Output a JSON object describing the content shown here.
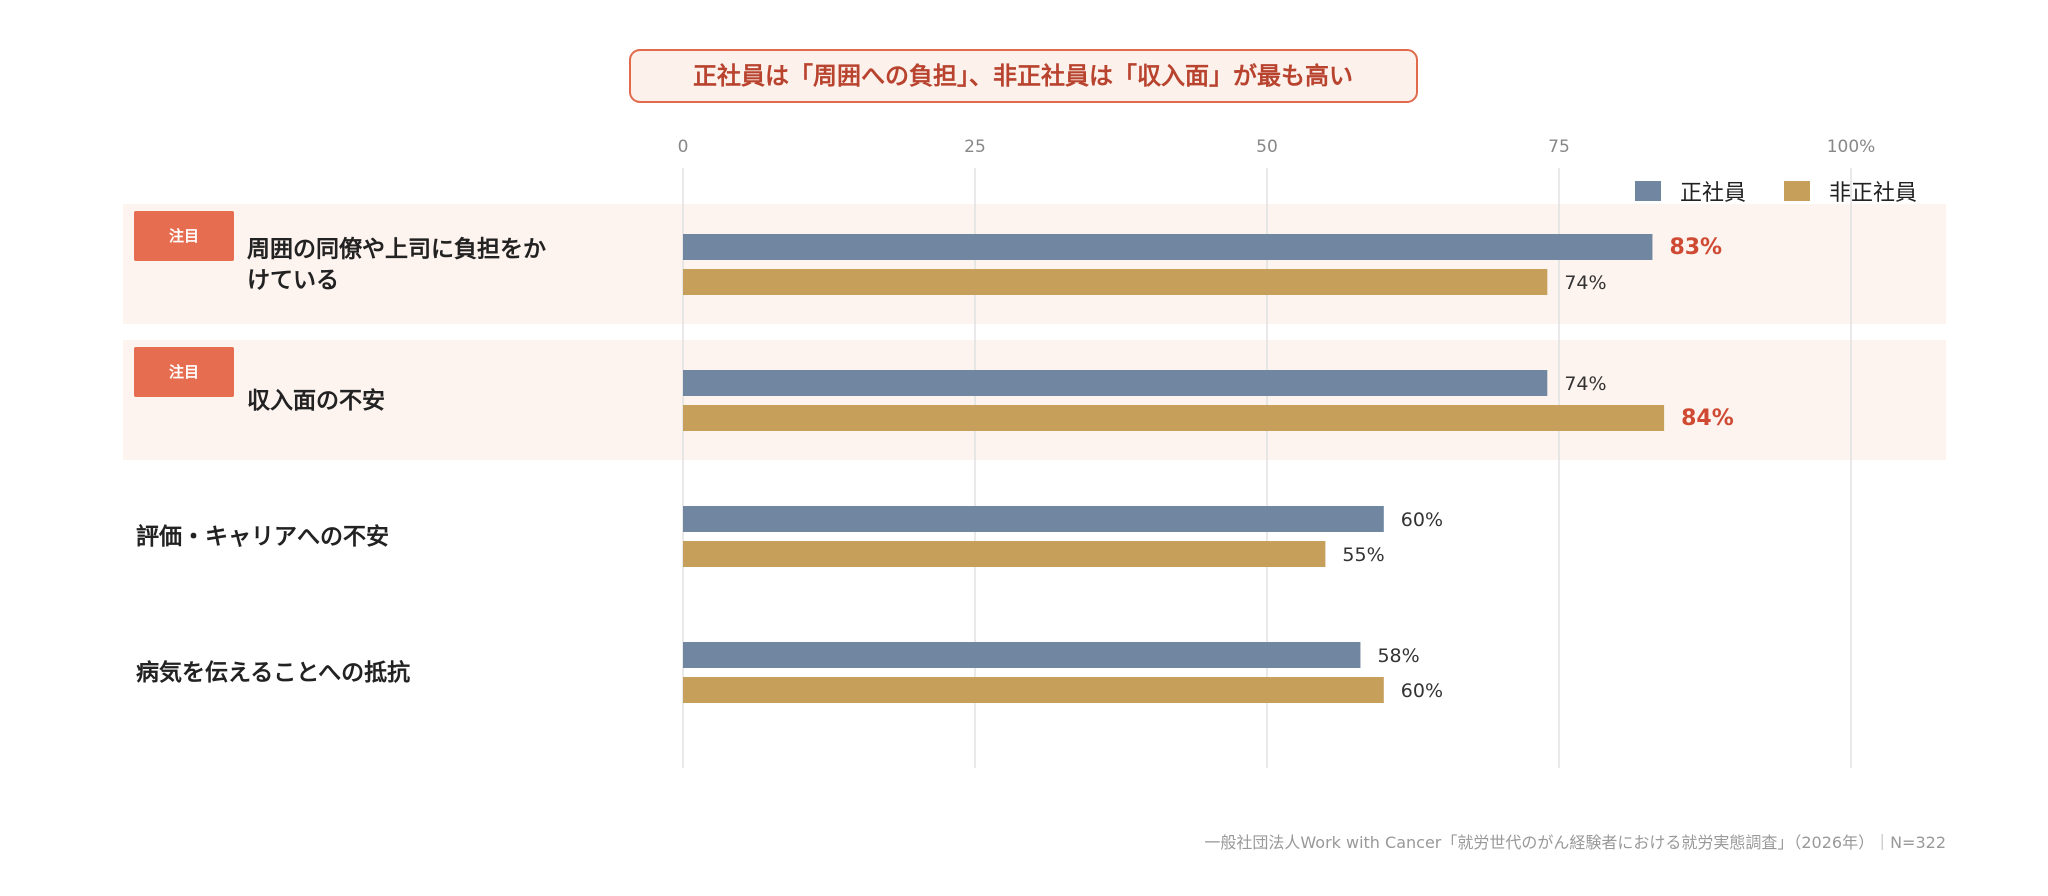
{
  "chart_data": {
    "type": "bar",
    "orientation": "horizontal",
    "title": "正社員は「周囲への負担」、非正社員は「収入面」が最も高い",
    "x_ticks": [
      "0",
      "25",
      "50",
      "75",
      "100%"
    ],
    "xlim": [
      0,
      100
    ],
    "grid": true,
    "legend_position": "top-right",
    "categories": [
      {
        "label": "周囲の同僚や上司に負担をかけている",
        "lines": [
          "周囲の同僚や上司に負担をか",
          "けている"
        ],
        "highlight": true
      },
      {
        "label": "収入面の不安",
        "lines": [
          "収入面の不安"
        ],
        "highlight": true
      },
      {
        "label": "評価・キャリアへの不安",
        "lines": [
          "評価・キャリアへの不安"
        ],
        "highlight": false
      },
      {
        "label": "病気を伝えることへの抵抗",
        "lines": [
          "病気を伝えることへの抵抗"
        ],
        "highlight": false
      }
    ],
    "series": [
      {
        "name": "正社員",
        "color": "#7086a1",
        "values": [
          83,
          74,
          60,
          58
        ]
      },
      {
        "name": "非正社員",
        "color": "#c6a05b",
        "values": [
          74,
          84,
          55,
          60
        ]
      }
    ],
    "emphasized_values": [
      [
        0,
        0
      ],
      [
        1,
        1
      ]
    ],
    "value_suffix": "%",
    "badge_label": "注目",
    "source": "一般社団法人Work with Cancer「就労世代のがん経験者における就労実態調査」（2026年）｜N=322"
  },
  "colors": {
    "title_text": "#b8432e",
    "title_border": "#e26a4c",
    "title_bg": "#fdf1ec",
    "highlight_bg": "#fdf3ef",
    "badge_bg": "#e66d50",
    "emphasis_value": "#cf4a33",
    "value_text": "#333333",
    "tick_text": "#888888",
    "grid": "#e2e2e2",
    "source_text": "#999999",
    "category_text": "#222222"
  }
}
